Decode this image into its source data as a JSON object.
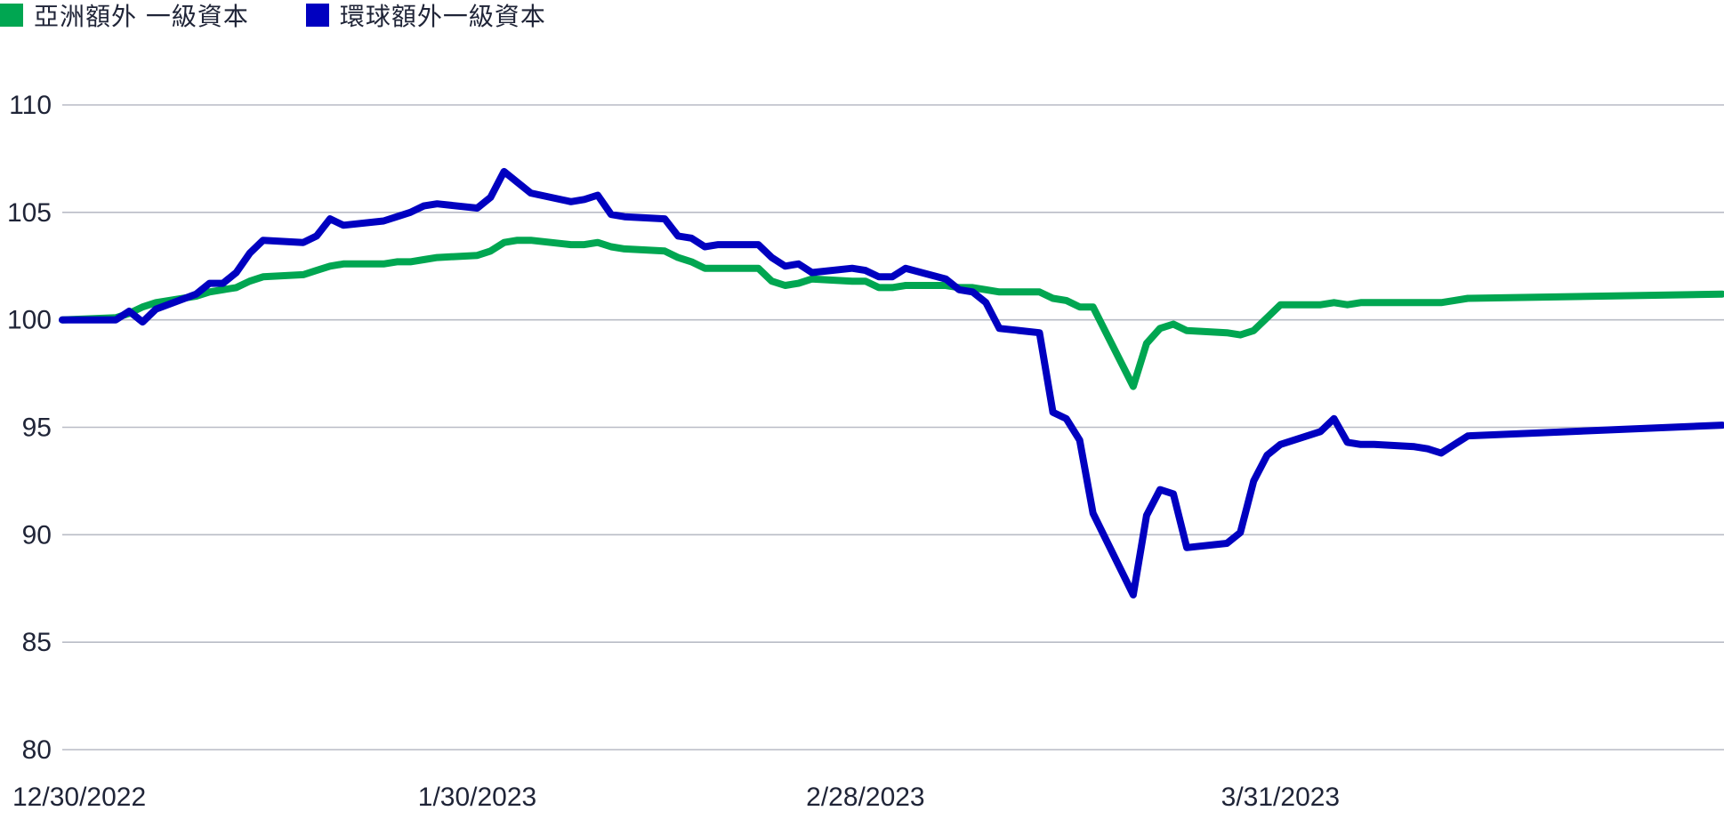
{
  "legend": {
    "asia_label": "亞洲額外 一級資本",
    "global_label": "環球額外一級資本"
  },
  "colors": {
    "asia": "#00a651",
    "global": "#0000c0",
    "grid": "#b9bcc6",
    "text": "#1f2437"
  },
  "chart_data": {
    "type": "line",
    "title": "",
    "xlabel": "",
    "ylabel": "",
    "ylim": [
      80,
      110
    ],
    "yticks": [
      110,
      105,
      100,
      95,
      90,
      85,
      80
    ],
    "x_range": [
      "2022-12-30",
      "2023-05-03"
    ],
    "xticks": [
      {
        "date": "2022-12-30",
        "label": "12/30/2022"
      },
      {
        "date": "2023-01-30",
        "label": "1/30/2023"
      },
      {
        "date": "2023-02-28",
        "label": "2/28/2023"
      },
      {
        "date": "2023-03-31",
        "label": "3/31/2023"
      }
    ],
    "grid": true,
    "legend_position": "top-left",
    "series": [
      {
        "name": "亞洲額外 一級資本",
        "color": "#00a651",
        "points": [
          [
            "2022-12-30",
            100.0
          ],
          [
            "2023-01-03",
            100.1
          ],
          [
            "2023-01-04",
            100.3
          ],
          [
            "2023-01-05",
            100.6
          ],
          [
            "2023-01-06",
            100.8
          ],
          [
            "2023-01-09",
            101.1
          ],
          [
            "2023-01-10",
            101.3
          ],
          [
            "2023-01-11",
            101.4
          ],
          [
            "2023-01-12",
            101.5
          ],
          [
            "2023-01-13",
            101.8
          ],
          [
            "2023-01-14",
            102.0
          ],
          [
            "2023-01-17",
            102.1
          ],
          [
            "2023-01-18",
            102.3
          ],
          [
            "2023-01-19",
            102.5
          ],
          [
            "2023-01-20",
            102.6
          ],
          [
            "2023-01-23",
            102.6
          ],
          [
            "2023-01-24",
            102.7
          ],
          [
            "2023-01-25",
            102.7
          ],
          [
            "2023-01-26",
            102.8
          ],
          [
            "2023-01-27",
            102.9
          ],
          [
            "2023-01-30",
            103.0
          ],
          [
            "2023-01-31",
            103.2
          ],
          [
            "2023-02-01",
            103.6
          ],
          [
            "2023-02-02",
            103.7
          ],
          [
            "2023-02-03",
            103.7
          ],
          [
            "2023-02-06",
            103.5
          ],
          [
            "2023-02-07",
            103.5
          ],
          [
            "2023-02-08",
            103.6
          ],
          [
            "2023-02-09",
            103.4
          ],
          [
            "2023-02-10",
            103.3
          ],
          [
            "2023-02-13",
            103.2
          ],
          [
            "2023-02-14",
            102.9
          ],
          [
            "2023-02-15",
            102.7
          ],
          [
            "2023-02-16",
            102.4
          ],
          [
            "2023-02-17",
            102.4
          ],
          [
            "2023-02-20",
            102.4
          ],
          [
            "2023-02-21",
            101.8
          ],
          [
            "2023-02-22",
            101.6
          ],
          [
            "2023-02-23",
            101.7
          ],
          [
            "2023-02-24",
            101.9
          ],
          [
            "2023-02-27",
            101.8
          ],
          [
            "2023-02-28",
            101.8
          ],
          [
            "2023-03-01",
            101.5
          ],
          [
            "2023-03-02",
            101.5
          ],
          [
            "2023-03-03",
            101.6
          ],
          [
            "2023-03-06",
            101.6
          ],
          [
            "2023-03-07",
            101.5
          ],
          [
            "2023-03-08",
            101.5
          ],
          [
            "2023-03-09",
            101.4
          ],
          [
            "2023-03-10",
            101.3
          ],
          [
            "2023-03-13",
            101.3
          ],
          [
            "2023-03-14",
            101.0
          ],
          [
            "2023-03-15",
            100.9
          ],
          [
            "2023-03-16",
            100.6
          ],
          [
            "2023-03-17",
            100.6
          ],
          [
            "2023-03-20",
            96.9
          ],
          [
            "2023-03-21",
            98.9
          ],
          [
            "2023-03-22",
            99.6
          ],
          [
            "2023-03-23",
            99.8
          ],
          [
            "2023-03-24",
            99.5
          ],
          [
            "2023-03-27",
            99.4
          ],
          [
            "2023-03-28",
            99.3
          ],
          [
            "2023-03-29",
            99.5
          ],
          [
            "2023-03-30",
            100.1
          ],
          [
            "2023-03-31",
            100.7
          ],
          [
            "2023-04-03",
            100.7
          ],
          [
            "2023-04-04",
            100.8
          ],
          [
            "2023-04-05",
            100.7
          ],
          [
            "2023-04-06",
            100.8
          ],
          [
            "2023-04-07",
            100.8
          ],
          [
            "2023-04-10",
            100.8
          ],
          [
            "2023-04-11",
            100.8
          ],
          [
            "2023-04-12",
            100.8
          ],
          [
            "2023-04-13",
            100.9
          ],
          [
            "2023-04-14",
            101.0
          ],
          [
            "2023-05-03",
            101.2
          ]
        ]
      },
      {
        "name": "環球額外一級資本",
        "color": "#0000c0",
        "points": [
          [
            "2022-12-30",
            100.0
          ],
          [
            "2023-01-03",
            100.0
          ],
          [
            "2023-01-04",
            100.4
          ],
          [
            "2023-01-05",
            99.9
          ],
          [
            "2023-01-06",
            100.5
          ],
          [
            "2023-01-09",
            101.2
          ],
          [
            "2023-01-10",
            101.7
          ],
          [
            "2023-01-11",
            101.7
          ],
          [
            "2023-01-12",
            102.2
          ],
          [
            "2023-01-13",
            103.1
          ],
          [
            "2023-01-14",
            103.7
          ],
          [
            "2023-01-17",
            103.6
          ],
          [
            "2023-01-18",
            103.9
          ],
          [
            "2023-01-19",
            104.7
          ],
          [
            "2023-01-20",
            104.4
          ],
          [
            "2023-01-23",
            104.6
          ],
          [
            "2023-01-24",
            104.8
          ],
          [
            "2023-01-25",
            105.0
          ],
          [
            "2023-01-26",
            105.3
          ],
          [
            "2023-01-27",
            105.4
          ],
          [
            "2023-01-30",
            105.2
          ],
          [
            "2023-01-31",
            105.7
          ],
          [
            "2023-02-01",
            106.9
          ],
          [
            "2023-02-02",
            106.4
          ],
          [
            "2023-02-03",
            105.9
          ],
          [
            "2023-02-06",
            105.5
          ],
          [
            "2023-02-07",
            105.6
          ],
          [
            "2023-02-08",
            105.8
          ],
          [
            "2023-02-09",
            104.9
          ],
          [
            "2023-02-10",
            104.8
          ],
          [
            "2023-02-13",
            104.7
          ],
          [
            "2023-02-14",
            103.9
          ],
          [
            "2023-02-15",
            103.8
          ],
          [
            "2023-02-16",
            103.4
          ],
          [
            "2023-02-17",
            103.5
          ],
          [
            "2023-02-20",
            103.5
          ],
          [
            "2023-02-21",
            102.9
          ],
          [
            "2023-02-22",
            102.5
          ],
          [
            "2023-02-23",
            102.6
          ],
          [
            "2023-02-24",
            102.2
          ],
          [
            "2023-02-27",
            102.4
          ],
          [
            "2023-02-28",
            102.3
          ],
          [
            "2023-03-01",
            102.0
          ],
          [
            "2023-03-02",
            102.0
          ],
          [
            "2023-03-03",
            102.4
          ],
          [
            "2023-03-06",
            101.9
          ],
          [
            "2023-03-07",
            101.4
          ],
          [
            "2023-03-08",
            101.3
          ],
          [
            "2023-03-09",
            100.8
          ],
          [
            "2023-03-10",
            99.6
          ],
          [
            "2023-03-13",
            99.4
          ],
          [
            "2023-03-14",
            95.7
          ],
          [
            "2023-03-15",
            95.4
          ],
          [
            "2023-03-16",
            94.4
          ],
          [
            "2023-03-17",
            91.0
          ],
          [
            "2023-03-20",
            87.2
          ],
          [
            "2023-03-21",
            90.9
          ],
          [
            "2023-03-22",
            92.1
          ],
          [
            "2023-03-23",
            91.9
          ],
          [
            "2023-03-24",
            89.4
          ],
          [
            "2023-03-27",
            89.6
          ],
          [
            "2023-03-28",
            90.1
          ],
          [
            "2023-03-29",
            92.5
          ],
          [
            "2023-03-30",
            93.7
          ],
          [
            "2023-03-31",
            94.2
          ],
          [
            "2023-04-03",
            94.8
          ],
          [
            "2023-04-04",
            95.4
          ],
          [
            "2023-04-05",
            94.3
          ],
          [
            "2023-04-06",
            94.2
          ],
          [
            "2023-04-07",
            94.2
          ],
          [
            "2023-04-10",
            94.1
          ],
          [
            "2023-04-11",
            94.0
          ],
          [
            "2023-04-12",
            93.8
          ],
          [
            "2023-04-13",
            94.2
          ],
          [
            "2023-04-14",
            94.6
          ],
          [
            "2023-05-03",
            95.1
          ]
        ]
      }
    ]
  }
}
